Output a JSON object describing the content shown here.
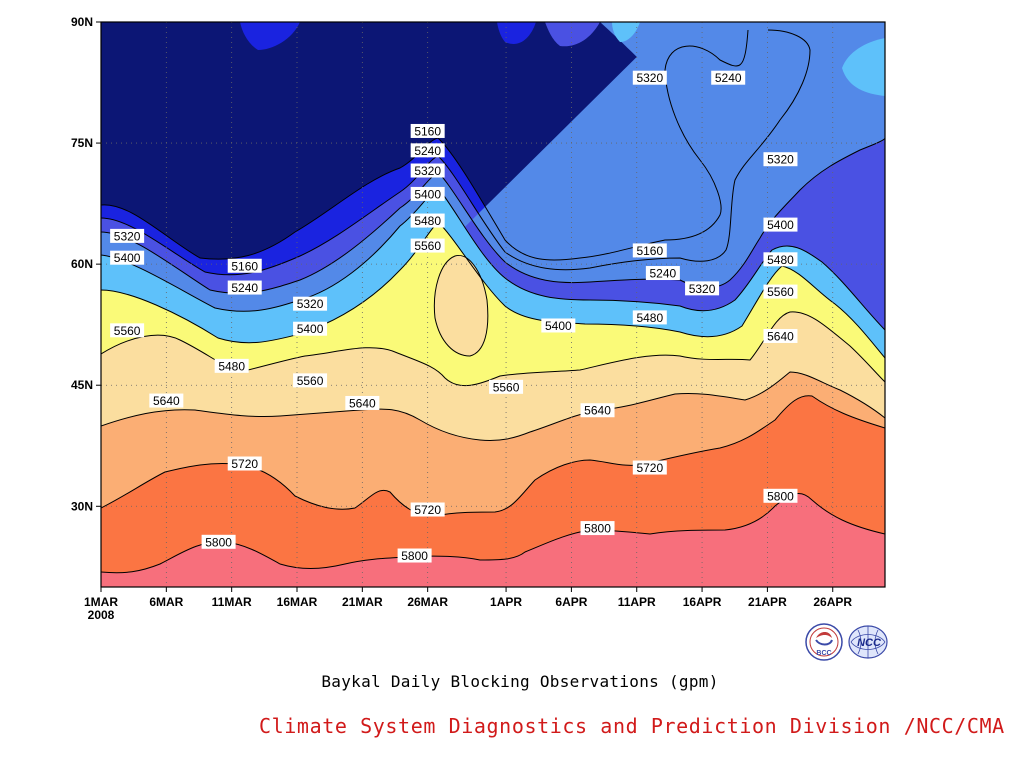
{
  "chart_data": {
    "type": "contour",
    "title": "Baykal Daily Blocking Observations (gpm)",
    "x": {
      "start": "2008-03-01",
      "end": "2008-04-30",
      "tick_labels": [
        "1MAR",
        "6MAR",
        "11MAR",
        "16MAR",
        "21MAR",
        "26MAR",
        "1APR",
        "6APR",
        "11APR",
        "16APR",
        "21APR",
        "26APR"
      ],
      "tick_dates": [
        "2008-03-01",
        "2008-03-06",
        "2008-03-11",
        "2008-03-16",
        "2008-03-21",
        "2008-03-26",
        "2008-04-01",
        "2008-04-06",
        "2008-04-11",
        "2008-04-16",
        "2008-04-21",
        "2008-04-26"
      ],
      "year_label": "2008"
    },
    "y": {
      "range": [
        20,
        90
      ],
      "unit": "latitude (degrees N)",
      "tick_labels": [
        "30N",
        "45N",
        "60N",
        "75N",
        "90N"
      ],
      "tick_values": [
        30,
        45,
        60,
        75,
        90
      ]
    },
    "grid": "dotted",
    "contour_levels": [
      5160,
      5240,
      5320,
      5400,
      5480,
      5560,
      5640,
      5720,
      5800
    ],
    "fill_colors": {
      "below_5160": "#0c1675",
      "5160_5240": "#1a23e0",
      "5240_5320": "#4a51e3",
      "5320_5400": "#5389e8",
      "5400_5480": "#5ec1fa",
      "5480_5560": "#fafa78",
      "5560_5640": "#fbde9f",
      "5640_5720": "#fbae74",
      "5720_5800": "#fb7543",
      "above_5800": "#f76f7c"
    },
    "contour_labels": [
      {
        "text": "5320",
        "date": "2008-03-03",
        "lat": 63.5
      },
      {
        "text": "5400",
        "date": "2008-03-03",
        "lat": 60.8
      },
      {
        "text": "5560",
        "date": "2008-03-03",
        "lat": 51.8
      },
      {
        "text": "5160",
        "date": "2008-03-12",
        "lat": 59.8
      },
      {
        "text": "5240",
        "date": "2008-03-12",
        "lat": 57.1
      },
      {
        "text": "5480",
        "date": "2008-03-11",
        "lat": 47.4
      },
      {
        "text": "5640",
        "date": "2008-03-06",
        "lat": 43.1
      },
      {
        "text": "5720",
        "date": "2008-03-12",
        "lat": 35.3
      },
      {
        "text": "5800",
        "date": "2008-03-10",
        "lat": 25.6
      },
      {
        "text": "5320",
        "date": "2008-03-17",
        "lat": 55.1
      },
      {
        "text": "5400",
        "date": "2008-03-17",
        "lat": 52.0
      },
      {
        "text": "5560",
        "date": "2008-03-17",
        "lat": 45.6
      },
      {
        "text": "5640",
        "date": "2008-03-21",
        "lat": 42.8
      },
      {
        "text": "5160",
        "date": "2008-03-26",
        "lat": 76.5
      },
      {
        "text": "5240",
        "date": "2008-03-26",
        "lat": 74.1
      },
      {
        "text": "5320",
        "date": "2008-03-26",
        "lat": 71.6
      },
      {
        "text": "5400",
        "date": "2008-03-26",
        "lat": 68.7
      },
      {
        "text": "5480",
        "date": "2008-03-26",
        "lat": 65.4
      },
      {
        "text": "5560",
        "date": "2008-03-26",
        "lat": 62.3
      },
      {
        "text": "5720",
        "date": "2008-03-26",
        "lat": 29.6
      },
      {
        "text": "5800",
        "date": "2008-03-25",
        "lat": 23.9
      },
      {
        "text": "5560",
        "date": "2008-04-01",
        "lat": 44.8
      },
      {
        "text": "5400",
        "date": "2008-04-05",
        "lat": 52.4
      },
      {
        "text": "5640",
        "date": "2008-04-08",
        "lat": 41.9
      },
      {
        "text": "5800",
        "date": "2008-04-08",
        "lat": 27.3
      },
      {
        "text": "5480",
        "date": "2008-04-12",
        "lat": 53.4
      },
      {
        "text": "5720",
        "date": "2008-04-12",
        "lat": 34.8
      },
      {
        "text": "5160",
        "date": "2008-04-12",
        "lat": 61.7
      },
      {
        "text": "5240",
        "date": "2008-04-13",
        "lat": 58.9
      },
      {
        "text": "5320",
        "date": "2008-04-12",
        "lat": 83.1
      },
      {
        "text": "5320",
        "date": "2008-04-16",
        "lat": 57.0
      },
      {
        "text": "5240",
        "date": "2008-04-18",
        "lat": 83.1
      },
      {
        "text": "5320",
        "date": "2008-04-22",
        "lat": 73.0
      },
      {
        "text": "5400",
        "date": "2008-04-22",
        "lat": 64.9
      },
      {
        "text": "5480",
        "date": "2008-04-22",
        "lat": 60.6
      },
      {
        "text": "5560",
        "date": "2008-04-22",
        "lat": 56.6
      },
      {
        "text": "5640",
        "date": "2008-04-22",
        "lat": 51.1
      },
      {
        "text": "5800",
        "date": "2008-04-22",
        "lat": 31.3
      }
    ]
  },
  "footer": {
    "title": "Baykal Daily Blocking Observations (gpm)",
    "credit": "Climate System Diagnostics and Prediction Division /NCC/CMA"
  },
  "logos": [
    {
      "name": "bcc-logo",
      "text": "BCC"
    },
    {
      "name": "ncc-logo",
      "text": "NCC"
    }
  ]
}
